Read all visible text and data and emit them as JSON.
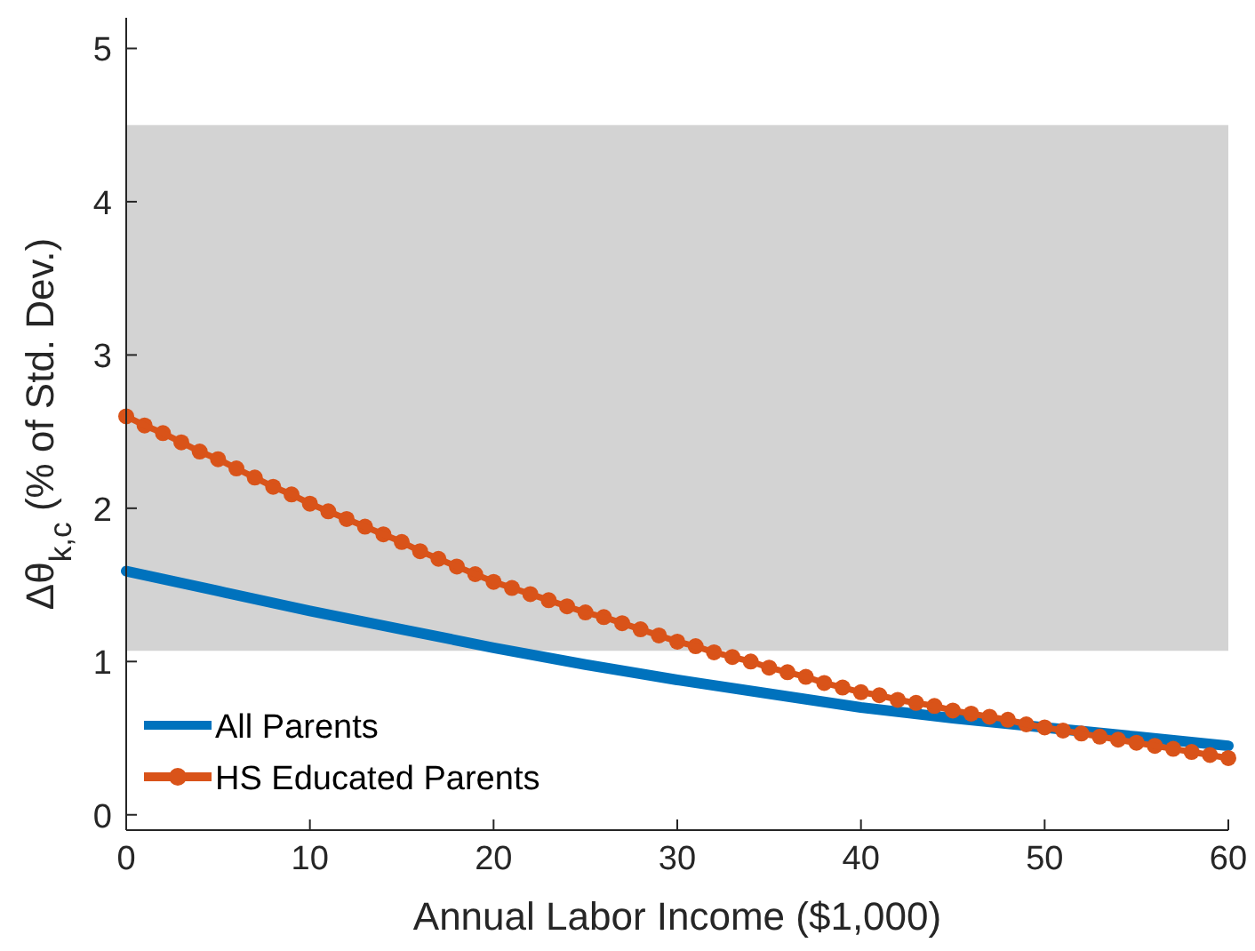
{
  "chart_data": {
    "type": "line",
    "xlabel": "Annual Labor Income ($1,000)",
    "ylabel": "Δθ$_{k,c}$ (% of Std. Dev.)",
    "xlim": [
      0,
      60
    ],
    "xticks": [
      0,
      10,
      20,
      30,
      40,
      50,
      60
    ],
    "ylim": [
      -0.1,
      5.2
    ],
    "yticks": [
      0,
      1,
      2,
      3,
      4,
      5
    ],
    "bands": [
      {
        "axis": "y",
        "from": 1.07,
        "to": 4.5,
        "color": "#d3d3d3"
      }
    ],
    "legend": "bottom left",
    "grid": false,
    "series": [
      {
        "name": "All Parents",
        "color": "#0072bd",
        "marker": "none",
        "x": [
          0,
          5,
          10,
          15,
          20,
          25,
          30,
          35,
          40,
          45,
          50,
          55,
          60
        ],
        "values": [
          1.59,
          1.46,
          1.33,
          1.21,
          1.09,
          0.98,
          0.88,
          0.79,
          0.7,
          0.63,
          0.57,
          0.51,
          0.45
        ]
      },
      {
        "name": "HS Educated Parents",
        "color": "#d95319",
        "marker": "circle",
        "x": [
          0,
          1,
          2,
          3,
          4,
          5,
          6,
          7,
          8,
          9,
          10,
          11,
          12,
          13,
          14,
          15,
          16,
          17,
          18,
          19,
          20,
          21,
          22,
          23,
          24,
          25,
          26,
          27,
          28,
          29,
          30,
          31,
          32,
          33,
          34,
          35,
          36,
          37,
          38,
          39,
          40,
          41,
          42,
          43,
          44,
          45,
          46,
          47,
          48,
          49,
          50,
          51,
          52,
          53,
          54,
          55,
          56,
          57,
          58,
          59,
          60
        ],
        "values": [
          2.6,
          2.54,
          2.49,
          2.43,
          2.37,
          2.32,
          2.26,
          2.2,
          2.14,
          2.09,
          2.03,
          1.98,
          1.93,
          1.88,
          1.83,
          1.78,
          1.72,
          1.67,
          1.62,
          1.57,
          1.52,
          1.48,
          1.44,
          1.4,
          1.36,
          1.32,
          1.29,
          1.25,
          1.21,
          1.17,
          1.13,
          1.1,
          1.06,
          1.03,
          1.0,
          0.96,
          0.93,
          0.9,
          0.86,
          0.83,
          0.8,
          0.78,
          0.75,
          0.73,
          0.71,
          0.68,
          0.66,
          0.64,
          0.62,
          0.59,
          0.57,
          0.55,
          0.53,
          0.51,
          0.49,
          0.47,
          0.45,
          0.43,
          0.41,
          0.39,
          0.37
        ]
      }
    ]
  }
}
